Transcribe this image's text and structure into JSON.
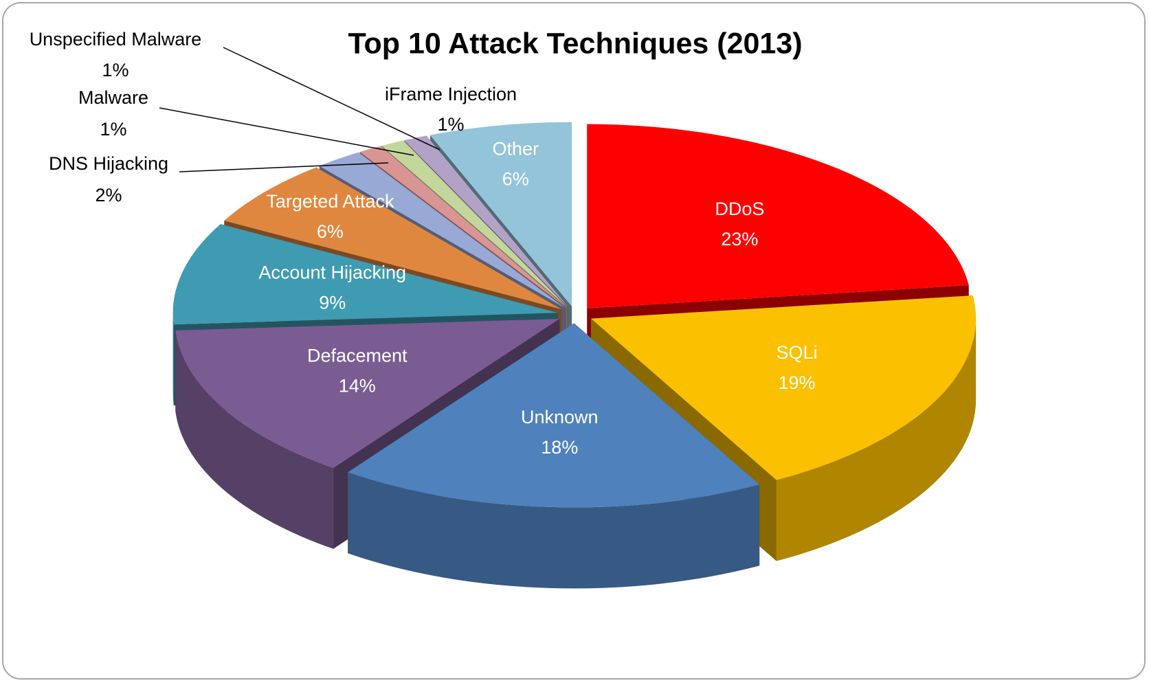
{
  "chart_data": {
    "type": "pie",
    "title": "Top 10 Attack Techniques (2013)",
    "categories": [
      "DDoS",
      "SQLi",
      "Unknown",
      "Defacement",
      "Account Hijacking",
      "Targeted Attack",
      "DNS Hijacking",
      "Malware",
      "Unspecified Malware",
      "iFrame Injection",
      "Other"
    ],
    "values": [
      23,
      19,
      18,
      14,
      9,
      6,
      2,
      1,
      1,
      1,
      6
    ],
    "value_labels": [
      "23%",
      "19%",
      "18%",
      "14%",
      "9%",
      "6%",
      "2%",
      "1%",
      "1%",
      "1%",
      "6%"
    ],
    "colors": [
      "#ff0000",
      "#fbc000",
      "#4f81bd",
      "#7a5c92",
      "#3f9bb1",
      "#e0873f",
      "#99a9d6",
      "#d99594",
      "#c3d69b",
      "#b3a2c7",
      "#93c4d9"
    ]
  }
}
